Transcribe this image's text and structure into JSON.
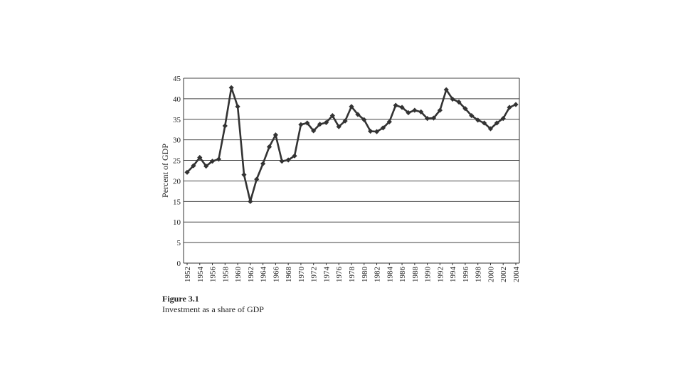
{
  "figure": {
    "label": "Figure 3.1",
    "caption": "Investment as a share of GDP"
  },
  "chart_data": {
    "type": "line",
    "title": "",
    "xlabel": "",
    "ylabel": "Percent of GDP",
    "ylim": [
      0,
      45
    ],
    "yticks": [
      0,
      5,
      10,
      15,
      20,
      25,
      30,
      35,
      40,
      45
    ],
    "xlim": [
      1952,
      2004
    ],
    "xtick_labels": [
      "1952",
      "1954",
      "1956",
      "1958",
      "1960",
      "1962",
      "1964",
      "1966",
      "1968",
      "1970",
      "1972",
      "1974",
      "1976",
      "1978",
      "1980",
      "1982",
      "1984",
      "1986",
      "1988",
      "1990",
      "1992",
      "1994",
      "1996",
      "1998",
      "2000",
      "2002",
      "2004"
    ],
    "grid": "horizontal",
    "legend": "none",
    "series_color": "#333333",
    "marker": "diamond",
    "x": [
      1952,
      1953,
      1954,
      1955,
      1956,
      1957,
      1958,
      1959,
      1960,
      1961,
      1962,
      1963,
      1964,
      1965,
      1966,
      1967,
      1968,
      1969,
      1970,
      1971,
      1972,
      1973,
      1974,
      1975,
      1976,
      1977,
      1978,
      1979,
      1980,
      1981,
      1982,
      1983,
      1984,
      1985,
      1986,
      1987,
      1988,
      1989,
      1990,
      1991,
      1992,
      1993,
      1994,
      1995,
      1996,
      1997,
      1998,
      1999,
      2000,
      2001,
      2002,
      2003,
      2004
    ],
    "y": [
      22.1,
      23.7,
      25.7,
      23.6,
      24.8,
      25.3,
      33.4,
      42.7,
      38.1,
      21.5,
      15.0,
      20.4,
      24.2,
      28.3,
      31.2,
      24.8,
      25.1,
      26.1,
      33.7,
      34.1,
      32.2,
      33.8,
      34.2,
      35.9,
      33.2,
      34.6,
      38.1,
      36.2,
      34.9,
      32.1,
      32.0,
      32.9,
      34.4,
      38.4,
      37.9,
      36.6,
      37.2,
      36.8,
      35.2,
      35.3,
      37.2,
      42.2,
      39.9,
      39.2,
      37.6,
      35.9,
      34.8,
      34.1,
      32.7,
      34.1,
      35.2,
      37.9,
      38.6
    ]
  }
}
